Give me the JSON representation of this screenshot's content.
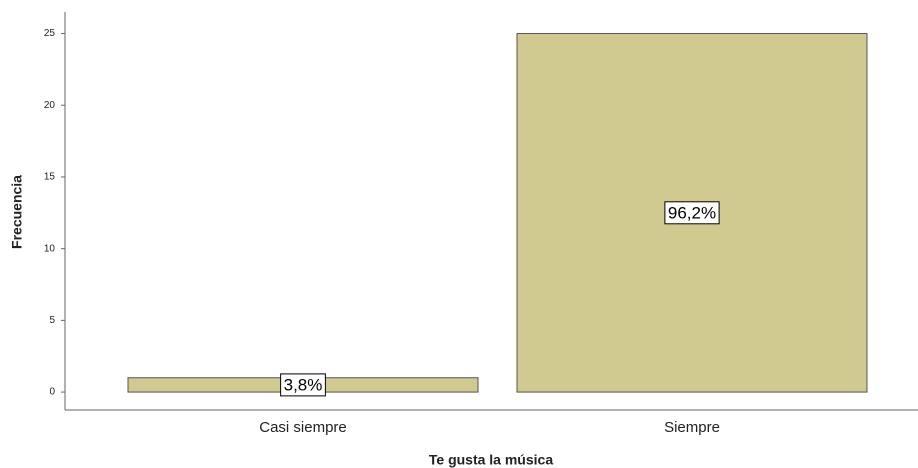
{
  "chart_data": {
    "type": "bar",
    "xlabel": "Te gusta la música",
    "ylabel": "Frecuencia",
    "categories": [
      "Casi siempre",
      "Siempre"
    ],
    "values": [
      1,
      25
    ],
    "annotations": [
      "3,8%",
      "96,2%"
    ],
    "color": "#d1ca90",
    "ylim": [
      -1.25,
      26.5
    ],
    "yticks": [
      0,
      5,
      10,
      15,
      20,
      25
    ],
    "grid": false
  }
}
